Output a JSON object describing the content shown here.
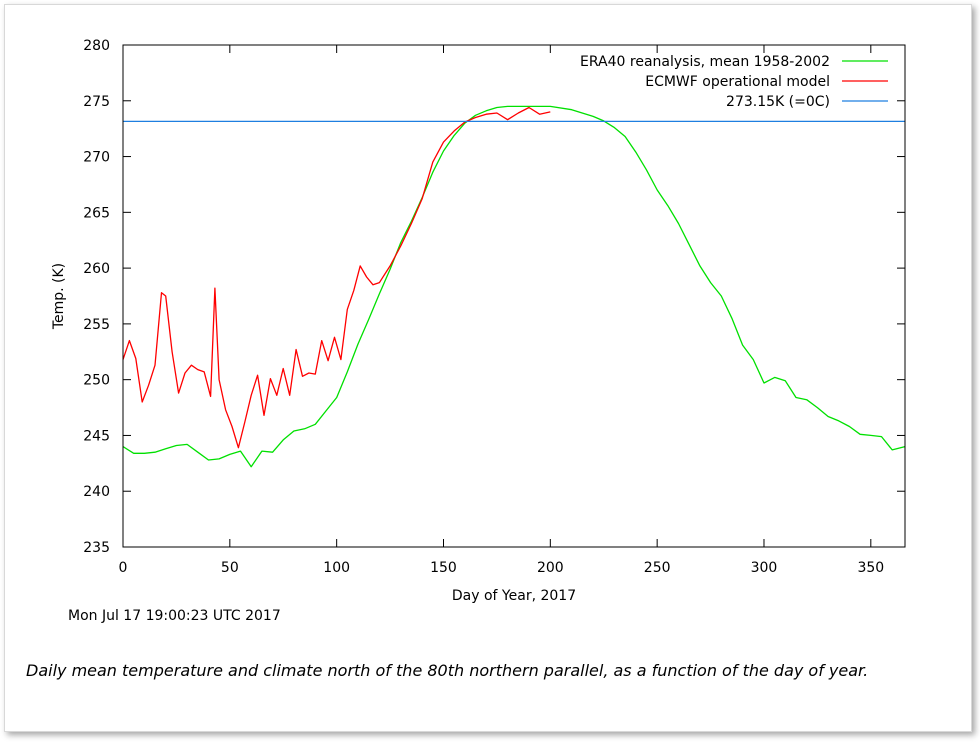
{
  "chart_data": {
    "type": "line",
    "xlabel": "Day of Year, 2017",
    "ylabel": "Temp. (K)",
    "xlim": [
      0,
      366
    ],
    "ylim": [
      235,
      280
    ],
    "xticks": [
      0,
      50,
      100,
      150,
      200,
      250,
      300,
      350
    ],
    "yticks": [
      235,
      240,
      245,
      250,
      255,
      260,
      265,
      270,
      275,
      280
    ],
    "legend_position": "top-right",
    "series": [
      {
        "name": "ERA40 reanalysis, mean 1958-2002",
        "color": "#00e000",
        "x": [
          0,
          5,
          10,
          15,
          20,
          25,
          30,
          35,
          40,
          45,
          50,
          55,
          60,
          65,
          70,
          75,
          80,
          85,
          90,
          95,
          100,
          105,
          110,
          115,
          120,
          125,
          130,
          135,
          140,
          145,
          150,
          155,
          160,
          165,
          170,
          175,
          180,
          190,
          200,
          210,
          220,
          225,
          230,
          235,
          240,
          245,
          250,
          255,
          260,
          265,
          270,
          275,
          280,
          285,
          290,
          295,
          300,
          305,
          310,
          315,
          320,
          325,
          330,
          335,
          340,
          345,
          350,
          355,
          360,
          366
        ],
        "y": [
          244.0,
          243.4,
          243.4,
          243.5,
          243.8,
          244.1,
          244.2,
          243.5,
          242.8,
          242.9,
          243.3,
          243.6,
          242.2,
          243.6,
          243.5,
          244.6,
          245.4,
          245.6,
          246.0,
          247.2,
          248.4,
          250.7,
          253.2,
          255.4,
          257.7,
          259.9,
          262.3,
          264.2,
          266.3,
          268.6,
          270.5,
          271.9,
          273.0,
          273.7,
          274.1,
          274.4,
          274.5,
          274.5,
          274.5,
          274.2,
          273.6,
          273.2,
          272.6,
          271.8,
          270.4,
          268.8,
          267.0,
          265.6,
          264.0,
          262.1,
          260.2,
          258.7,
          257.5,
          255.5,
          253.1,
          251.8,
          249.7,
          250.2,
          249.9,
          248.4,
          248.2,
          247.5,
          246.7,
          246.3,
          245.8,
          245.1,
          245.0,
          244.9,
          243.7,
          244.0
        ]
      },
      {
        "name": "ECMWF operational model",
        "color": "#ff0000",
        "x": [
          0,
          3,
          6,
          9,
          12,
          15,
          18,
          20,
          23,
          26,
          29,
          32,
          35,
          38,
          41,
          43,
          45,
          48,
          51,
          54,
          57,
          60,
          63,
          66,
          69,
          72,
          75,
          78,
          81,
          84,
          87,
          90,
          93,
          96,
          99,
          102,
          105,
          108,
          111,
          114,
          117,
          120,
          125,
          130,
          135,
          140,
          145,
          150,
          155,
          160,
          165,
          170,
          175,
          180,
          185,
          190,
          195,
          200
        ],
        "y": [
          251.8,
          253.5,
          251.9,
          248.0,
          249.5,
          251.3,
          257.8,
          257.5,
          252.5,
          248.8,
          250.6,
          251.3,
          250.9,
          250.7,
          248.5,
          258.2,
          250.0,
          247.3,
          245.8,
          243.9,
          246.2,
          248.6,
          250.4,
          246.8,
          250.1,
          248.6,
          251.0,
          248.6,
          252.7,
          250.3,
          250.6,
          250.5,
          253.5,
          251.7,
          253.8,
          251.8,
          256.3,
          258.0,
          260.2,
          259.2,
          258.5,
          258.7,
          260.2,
          262.0,
          264.0,
          266.2,
          269.5,
          271.3,
          272.3,
          273.1,
          273.5,
          273.8,
          273.9,
          273.3,
          273.9,
          274.4,
          273.8,
          274.0
        ]
      },
      {
        "name": "273.15K (=0C)",
        "color": "#1e7fe0",
        "x": [
          0,
          366
        ],
        "y": [
          273.15,
          273.15
        ]
      }
    ]
  },
  "timestamp": "Mon Jul  17  19:00:23 UTC 2017",
  "caption": "Daily mean temperature and climate north of the 80th northern parallel, as a function of the day of year."
}
